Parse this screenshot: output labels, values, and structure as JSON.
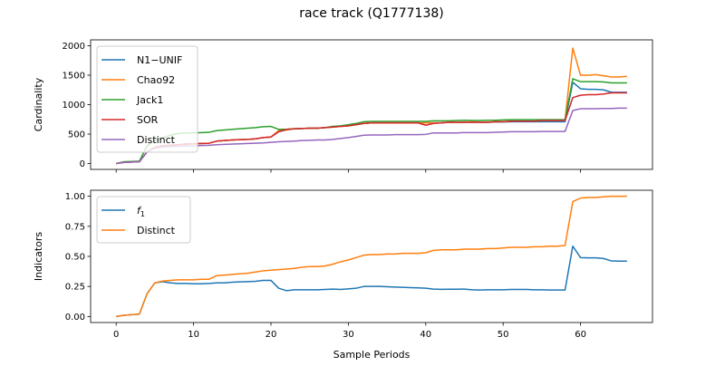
{
  "figure": {
    "title": "race track (Q1777138)"
  },
  "chart_data": [
    {
      "type": "line",
      "title": "race track (Q1777138)",
      "xlabel": "",
      "ylabel": "Cardinality",
      "xlim": [
        -3.3,
        69.3
      ],
      "ylim": [
        -100,
        2100
      ],
      "xticks": [
        0,
        10,
        20,
        30,
        40,
        50,
        60
      ],
      "xtick_labels": [
        "",
        "",
        "",
        "",
        "",
        "",
        ""
      ],
      "yticks": [
        0,
        500,
        1000,
        1500,
        2000
      ],
      "ytick_labels": [
        "0",
        "500",
        "1000",
        "1500",
        "2000"
      ],
      "legend_position": "top-left",
      "grid": false,
      "series": [
        {
          "name": "N1−UNIF",
          "color": "#1f77b4",
          "x": [
            0,
            1,
            2,
            3,
            4,
            5,
            6,
            7,
            8,
            9,
            10,
            11,
            12,
            13,
            14,
            15,
            16,
            17,
            18,
            19,
            20,
            21,
            22,
            23,
            24,
            25,
            26,
            27,
            28,
            29,
            30,
            31,
            32,
            33,
            34,
            35,
            36,
            37,
            38,
            39,
            40,
            41,
            42,
            43,
            44,
            45,
            46,
            47,
            48,
            49,
            50,
            51,
            52,
            53,
            54,
            55,
            56,
            57,
            58,
            59,
            60,
            61,
            62,
            63,
            64,
            65,
            66
          ],
          "y": [
            0,
            20,
            25,
            30,
            200,
            270,
            300,
            310,
            320,
            330,
            335,
            340,
            345,
            380,
            390,
            400,
            405,
            410,
            420,
            440,
            450,
            540,
            570,
            590,
            595,
            600,
            600,
            610,
            620,
            630,
            640,
            660,
            680,
            690,
            690,
            690,
            690,
            690,
            690,
            690,
            690,
            690,
            690,
            700,
            700,
            700,
            700,
            700,
            700,
            705,
            705,
            710,
            710,
            710,
            710,
            710,
            710,
            710,
            710,
            1380,
            1270,
            1260,
            1260,
            1250,
            1210,
            1210,
            1210
          ]
        },
        {
          "name": "Chao92",
          "color": "#ff7f0e",
          "x": [
            0,
            1,
            2,
            3,
            4,
            5,
            6,
            7,
            8,
            9,
            10,
            11,
            12,
            13,
            14,
            15,
            16,
            17,
            18,
            19,
            20,
            21,
            22,
            23,
            24,
            25,
            26,
            27,
            28,
            29,
            30,
            31,
            32,
            33,
            34,
            35,
            36,
            37,
            38,
            39,
            40,
            41,
            42,
            43,
            44,
            45,
            46,
            47,
            48,
            49,
            50,
            51,
            52,
            53,
            54,
            55,
            56,
            57,
            58,
            59,
            60,
            61,
            62,
            63,
            64,
            65,
            66
          ],
          "y": [
            0,
            20,
            25,
            30,
            200,
            280,
            300,
            310,
            320,
            330,
            335,
            340,
            345,
            380,
            390,
            400,
            405,
            410,
            420,
            440,
            450,
            560,
            570,
            590,
            595,
            600,
            600,
            610,
            620,
            630,
            640,
            660,
            680,
            690,
            690,
            690,
            690,
            690,
            690,
            690,
            690,
            690,
            690,
            700,
            700,
            700,
            710,
            700,
            700,
            710,
            710,
            720,
            720,
            720,
            720,
            730,
            730,
            730,
            740,
            1960,
            1500,
            1500,
            1510,
            1490,
            1470,
            1470,
            1480
          ]
        },
        {
          "name": "Jack1",
          "color": "#2ca02c",
          "x": [
            0,
            1,
            2,
            3,
            4,
            5,
            6,
            7,
            8,
            9,
            10,
            11,
            12,
            13,
            14,
            15,
            16,
            17,
            18,
            19,
            20,
            21,
            22,
            23,
            24,
            25,
            26,
            27,
            28,
            29,
            30,
            31,
            32,
            33,
            34,
            35,
            36,
            37,
            38,
            39,
            40,
            41,
            42,
            43,
            44,
            45,
            46,
            47,
            48,
            49,
            50,
            51,
            52,
            53,
            54,
            55,
            56,
            57,
            58,
            59,
            60,
            61,
            62,
            63,
            64,
            65,
            66
          ],
          "y": [
            0,
            30,
            35,
            40,
            300,
            390,
            440,
            480,
            510,
            520,
            520,
            525,
            530,
            560,
            570,
            580,
            590,
            600,
            610,
            625,
            630,
            580,
            580,
            590,
            595,
            600,
            600,
            610,
            630,
            640,
            660,
            680,
            710,
            715,
            715,
            715,
            715,
            715,
            715,
            715,
            715,
            725,
            725,
            725,
            730,
            735,
            730,
            730,
            735,
            735,
            740,
            745,
            745,
            745,
            745,
            745,
            745,
            745,
            745,
            1440,
            1390,
            1390,
            1390,
            1385,
            1370,
            1370,
            1370
          ]
        },
        {
          "name": "SOR",
          "color": "#d62728",
          "x": [
            0,
            1,
            2,
            3,
            4,
            5,
            6,
            7,
            8,
            9,
            10,
            11,
            12,
            13,
            14,
            15,
            16,
            17,
            18,
            19,
            20,
            21,
            22,
            23,
            24,
            25,
            26,
            27,
            28,
            29,
            30,
            31,
            32,
            33,
            34,
            35,
            36,
            37,
            38,
            39,
            40,
            41,
            42,
            43,
            44,
            45,
            46,
            47,
            48,
            49,
            50,
            51,
            52,
            53,
            54,
            55,
            56,
            57,
            58,
            59,
            60,
            61,
            62,
            63,
            64,
            65,
            66
          ],
          "y": [
            0,
            20,
            25,
            30,
            200,
            270,
            300,
            310,
            320,
            330,
            335,
            340,
            345,
            380,
            390,
            400,
            405,
            410,
            420,
            440,
            450,
            540,
            580,
            590,
            595,
            600,
            600,
            610,
            620,
            630,
            640,
            660,
            680,
            690,
            690,
            690,
            690,
            690,
            690,
            690,
            650,
            680,
            690,
            700,
            700,
            700,
            700,
            700,
            700,
            710,
            710,
            720,
            720,
            720,
            720,
            730,
            730,
            730,
            730,
            1120,
            1160,
            1170,
            1170,
            1180,
            1200,
            1200,
            1200
          ]
        },
        {
          "name": "Distinct",
          "color": "#9467bd",
          "x": [
            0,
            1,
            2,
            3,
            4,
            5,
            6,
            7,
            8,
            9,
            10,
            11,
            12,
            13,
            14,
            15,
            16,
            17,
            18,
            19,
            20,
            21,
            22,
            23,
            24,
            25,
            26,
            27,
            28,
            29,
            30,
            31,
            32,
            33,
            34,
            35,
            36,
            37,
            38,
            39,
            40,
            41,
            42,
            43,
            44,
            45,
            46,
            47,
            48,
            49,
            50,
            51,
            52,
            53,
            54,
            55,
            56,
            57,
            58,
            59,
            60,
            61,
            62,
            63,
            64,
            65,
            66
          ],
          "y": [
            0,
            20,
            25,
            30,
            200,
            260,
            280,
            290,
            295,
            300,
            300,
            305,
            310,
            320,
            325,
            330,
            335,
            340,
            345,
            350,
            360,
            370,
            375,
            380,
            390,
            395,
            400,
            400,
            410,
            425,
            440,
            460,
            480,
            485,
            485,
            485,
            490,
            490,
            490,
            490,
            495,
            520,
            520,
            520,
            520,
            525,
            525,
            525,
            525,
            530,
            535,
            540,
            540,
            540,
            540,
            545,
            545,
            545,
            545,
            900,
            930,
            930,
            930,
            935,
            935,
            940,
            940
          ]
        }
      ]
    },
    {
      "type": "line",
      "title": "",
      "xlabel": "Sample Periods",
      "ylabel": "Indicators",
      "xlim": [
        -3.3,
        69.3
      ],
      "ylim": [
        -0.05,
        1.05
      ],
      "xticks": [
        0,
        10,
        20,
        30,
        40,
        50,
        60
      ],
      "xtick_labels": [
        "0",
        "10",
        "20",
        "30",
        "40",
        "50",
        "60"
      ],
      "yticks": [
        0,
        0.25,
        0.5,
        0.75,
        1.0
      ],
      "ytick_labels": [
        "0.00",
        "0.25",
        "0.50",
        "0.75",
        "1.00"
      ],
      "legend_position": "top-left",
      "grid": false,
      "series": [
        {
          "name": "f",
          "name_subscript": "1",
          "color": "#1f77b4",
          "x": [
            0,
            1,
            2,
            3,
            4,
            5,
            6,
            7,
            8,
            9,
            10,
            11,
            12,
            13,
            14,
            15,
            16,
            17,
            18,
            19,
            20,
            21,
            22,
            23,
            24,
            25,
            26,
            27,
            28,
            29,
            30,
            31,
            32,
            33,
            34,
            35,
            36,
            37,
            38,
            39,
            40,
            41,
            42,
            43,
            44,
            45,
            46,
            47,
            48,
            49,
            50,
            51,
            52,
            53,
            54,
            55,
            56,
            57,
            58,
            59,
            60,
            61,
            62,
            63,
            64,
            65,
            66
          ],
          "y": [
            0.0,
            0.01,
            0.015,
            0.02,
            0.19,
            0.28,
            0.29,
            0.28,
            0.275,
            0.275,
            0.272,
            0.272,
            0.275,
            0.28,
            0.28,
            0.285,
            0.288,
            0.29,
            0.293,
            0.3,
            0.3,
            0.235,
            0.215,
            0.222,
            0.222,
            0.222,
            0.222,
            0.225,
            0.228,
            0.225,
            0.23,
            0.235,
            0.25,
            0.25,
            0.25,
            0.248,
            0.245,
            0.243,
            0.24,
            0.238,
            0.235,
            0.228,
            0.226,
            0.227,
            0.227,
            0.228,
            0.222,
            0.22,
            0.222,
            0.222,
            0.222,
            0.225,
            0.225,
            0.225,
            0.222,
            0.222,
            0.22,
            0.22,
            0.22,
            0.585,
            0.49,
            0.488,
            0.488,
            0.482,
            0.462,
            0.46,
            0.46
          ]
        },
        {
          "name": "Distinct",
          "color": "#ff7f0e",
          "x": [
            0,
            1,
            2,
            3,
            4,
            5,
            6,
            7,
            8,
            9,
            10,
            11,
            12,
            13,
            14,
            15,
            16,
            17,
            18,
            19,
            20,
            21,
            22,
            23,
            24,
            25,
            26,
            27,
            28,
            29,
            30,
            31,
            32,
            33,
            34,
            35,
            36,
            37,
            38,
            39,
            40,
            41,
            42,
            43,
            44,
            45,
            46,
            47,
            48,
            49,
            50,
            51,
            52,
            53,
            54,
            55,
            56,
            57,
            58,
            59,
            60,
            61,
            62,
            63,
            64,
            65,
            66
          ],
          "y": [
            0.0,
            0.01,
            0.015,
            0.02,
            0.19,
            0.28,
            0.295,
            0.3,
            0.305,
            0.305,
            0.305,
            0.31,
            0.31,
            0.34,
            0.345,
            0.35,
            0.355,
            0.36,
            0.37,
            0.38,
            0.385,
            0.39,
            0.395,
            0.4,
            0.41,
            0.415,
            0.415,
            0.42,
            0.435,
            0.455,
            0.47,
            0.49,
            0.51,
            0.515,
            0.515,
            0.52,
            0.52,
            0.525,
            0.525,
            0.525,
            0.53,
            0.55,
            0.555,
            0.555,
            0.555,
            0.56,
            0.56,
            0.56,
            0.565,
            0.565,
            0.57,
            0.575,
            0.575,
            0.575,
            0.58,
            0.58,
            0.585,
            0.585,
            0.59,
            0.955,
            0.985,
            0.99,
            0.99,
            0.995,
            1.0,
            1.0,
            1.0
          ]
        }
      ]
    }
  ]
}
